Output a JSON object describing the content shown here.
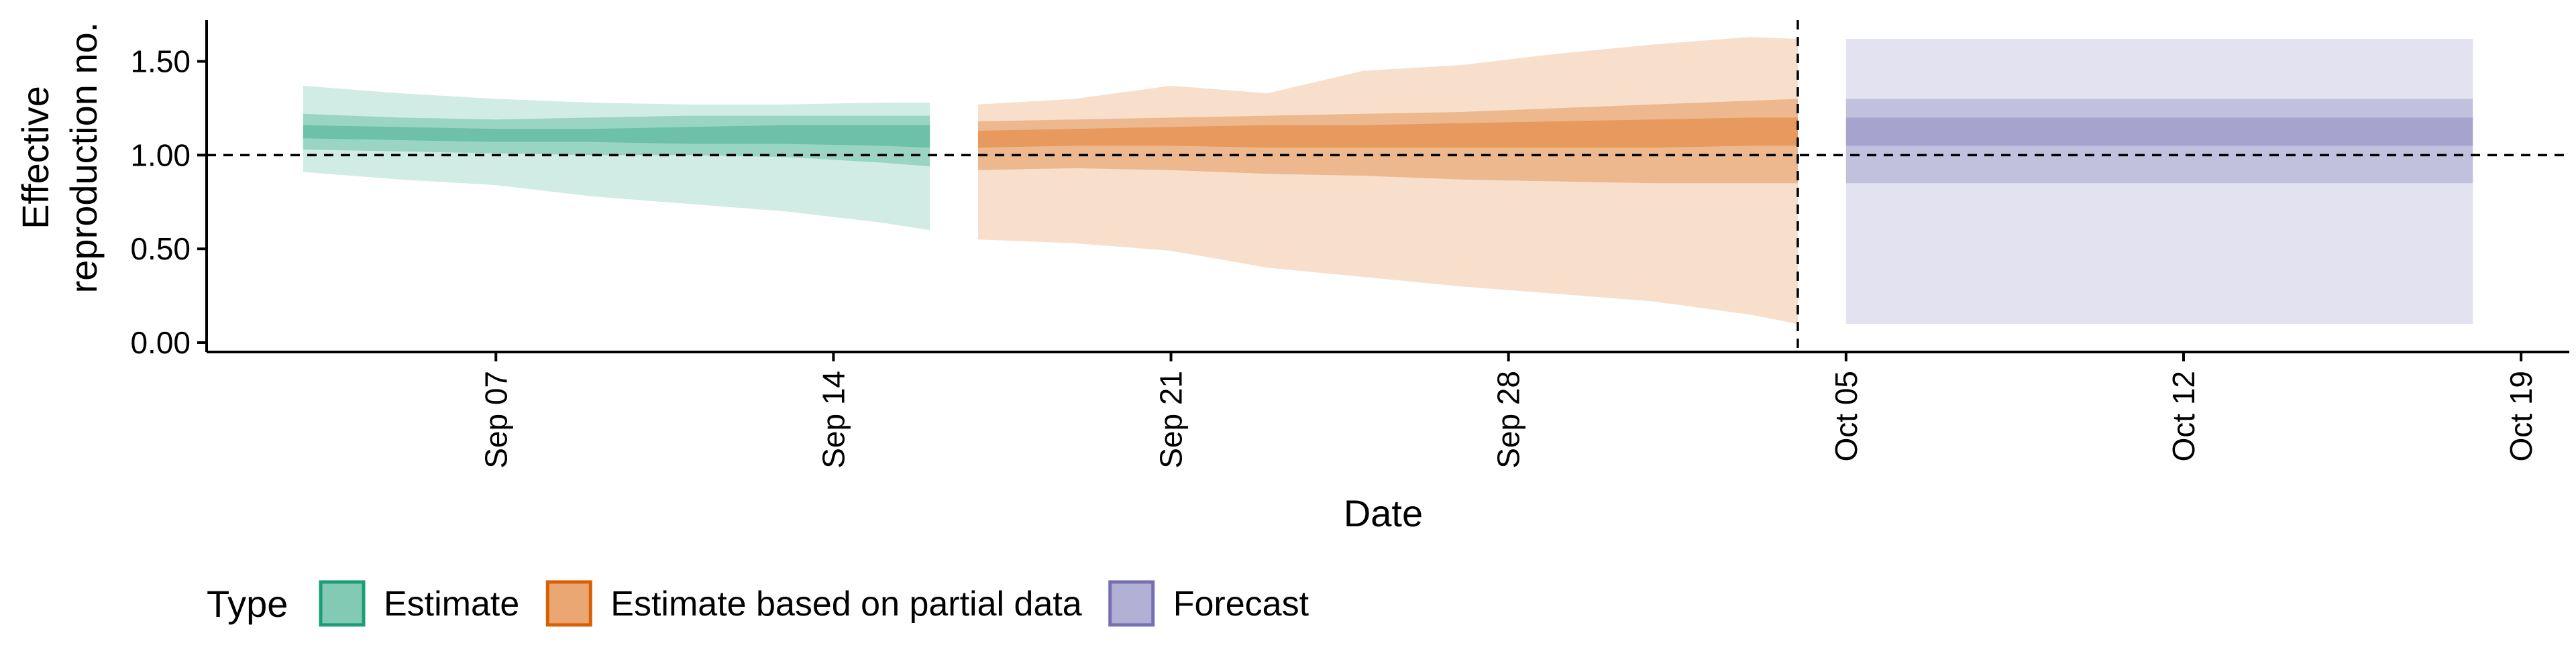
{
  "chart_data": {
    "type": "area",
    "title": "",
    "xlabel": "Date",
    "ylabel_lines": [
      "Effective",
      "reproduction no."
    ],
    "ylim": [
      -0.05,
      1.72
    ],
    "xlim": [
      "2022-09-01",
      "2022-10-20"
    ],
    "y_ticks": [
      {
        "value": 0.0,
        "label": "0.00"
      },
      {
        "value": 0.5,
        "label": "0.50"
      },
      {
        "value": 1.0,
        "label": "1.00"
      },
      {
        "value": 1.5,
        "label": "1.50"
      }
    ],
    "x_ticks": [
      {
        "date": "2022-09-07",
        "label": "Sep 07"
      },
      {
        "date": "2022-09-14",
        "label": "Sep 14"
      },
      {
        "date": "2022-09-21",
        "label": "Sep 21"
      },
      {
        "date": "2022-09-28",
        "label": "Sep 28"
      },
      {
        "date": "2022-10-05",
        "label": "Oct 05"
      },
      {
        "date": "2022-10-12",
        "label": "Oct 12"
      },
      {
        "date": "2022-10-19",
        "label": "Oct 19"
      }
    ],
    "reference_line_y": 1.0,
    "reference_line_date": "2022-10-04",
    "grid": false,
    "legend_position": "bottom-left",
    "legend_title": "Type",
    "series": [
      {
        "name": "Estimate",
        "fill": "#1b9e77",
        "stroke": "#1b9e77",
        "dates": [
          "2022-09-03",
          "2022-09-05",
          "2022-09-07",
          "2022-09-09",
          "2022-09-11",
          "2022-09-13",
          "2022-09-15",
          "2022-09-16"
        ],
        "outer_lo": [
          0.91,
          0.87,
          0.84,
          0.78,
          0.74,
          0.7,
          0.64,
          0.6
        ],
        "outer_hi": [
          1.37,
          1.33,
          1.3,
          1.28,
          1.27,
          1.27,
          1.28,
          1.28
        ],
        "mid_lo": [
          1.03,
          1.02,
          1.01,
          1.0,
          1.0,
          0.99,
          0.96,
          0.94
        ],
        "mid_hi": [
          1.22,
          1.2,
          1.19,
          1.2,
          1.21,
          1.21,
          1.21,
          1.21
        ],
        "inner_lo": [
          1.09,
          1.08,
          1.07,
          1.07,
          1.06,
          1.06,
          1.05,
          1.04
        ],
        "inner_hi": [
          1.16,
          1.15,
          1.14,
          1.14,
          1.15,
          1.16,
          1.16,
          1.16
        ]
      },
      {
        "name": "Estimate based on partial data",
        "fill": "#d95f02",
        "stroke": "#d95f02",
        "dates": [
          "2022-09-17",
          "2022-09-19",
          "2022-09-21",
          "2022-09-23",
          "2022-09-25",
          "2022-09-27",
          "2022-09-29",
          "2022-10-01",
          "2022-10-03",
          "2022-10-04"
        ],
        "outer_lo": [
          0.55,
          0.53,
          0.49,
          0.4,
          0.35,
          0.3,
          0.26,
          0.22,
          0.15,
          0.1
        ],
        "outer_hi": [
          1.27,
          1.3,
          1.37,
          1.33,
          1.45,
          1.48,
          1.54,
          1.59,
          1.63,
          1.62
        ],
        "mid_lo": [
          0.92,
          0.93,
          0.92,
          0.9,
          0.89,
          0.87,
          0.86,
          0.85,
          0.85,
          0.85
        ],
        "mid_hi": [
          1.18,
          1.19,
          1.2,
          1.21,
          1.22,
          1.23,
          1.25,
          1.27,
          1.29,
          1.3
        ],
        "inner_lo": [
          1.04,
          1.05,
          1.05,
          1.04,
          1.04,
          1.04,
          1.04,
          1.04,
          1.05,
          1.05
        ],
        "inner_hi": [
          1.13,
          1.14,
          1.15,
          1.16,
          1.16,
          1.17,
          1.18,
          1.19,
          1.2,
          1.2
        ]
      },
      {
        "name": "Forecast",
        "fill": "#7570b3",
        "stroke": "#7570b3",
        "dates": [
          "2022-10-05",
          "2022-10-18"
        ],
        "outer_lo": [
          0.1,
          0.1
        ],
        "outer_hi": [
          1.62,
          1.62
        ],
        "mid_lo": [
          0.85,
          0.85
        ],
        "mid_hi": [
          1.3,
          1.3
        ],
        "inner_lo": [
          1.05,
          1.05
        ],
        "inner_hi": [
          1.2,
          1.2
        ]
      }
    ]
  }
}
